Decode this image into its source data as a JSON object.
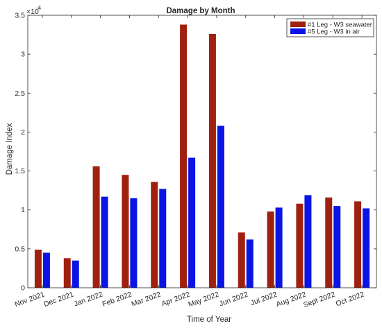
{
  "chart_data": {
    "type": "bar",
    "title": "Damage by Month",
    "xlabel": "Time of Year",
    "ylabel": "Damage Index",
    "y_exponent_label": "×10",
    "y_exponent_power": "-4",
    "ylim": [
      0,
      3.5
    ],
    "y_ticks": [
      0,
      0.5,
      1,
      1.5,
      2,
      2.5,
      3,
      3.5
    ],
    "y_tick_labels": [
      "0",
      "0.5",
      "1",
      "1.5",
      "2",
      "2.5",
      "3",
      "3.5"
    ],
    "grid": false,
    "legend_position": "top-right",
    "categories": [
      "Nov 2021",
      "Dec 2021",
      "Jan 2022",
      "Feb 2022",
      "Mar 2022",
      "Apr 2022",
      "May 2022",
      "Jun 2022",
      "Jul 2022",
      "Aug 2022",
      "Sept 2022",
      "Oct 2022"
    ],
    "series": [
      {
        "name": "#1 Leg - W3 seawater",
        "color": "#a0200f",
        "values": [
          0.49,
          0.38,
          1.56,
          1.45,
          1.36,
          3.38,
          3.26,
          0.71,
          0.98,
          1.08,
          1.16,
          1.11
        ]
      },
      {
        "name": "#5 Leg - W3 in air",
        "color": "#0a14e6",
        "values": [
          0.45,
          0.35,
          1.17,
          1.15,
          1.27,
          1.67,
          2.08,
          0.62,
          1.03,
          1.19,
          1.05,
          1.02
        ]
      }
    ]
  }
}
